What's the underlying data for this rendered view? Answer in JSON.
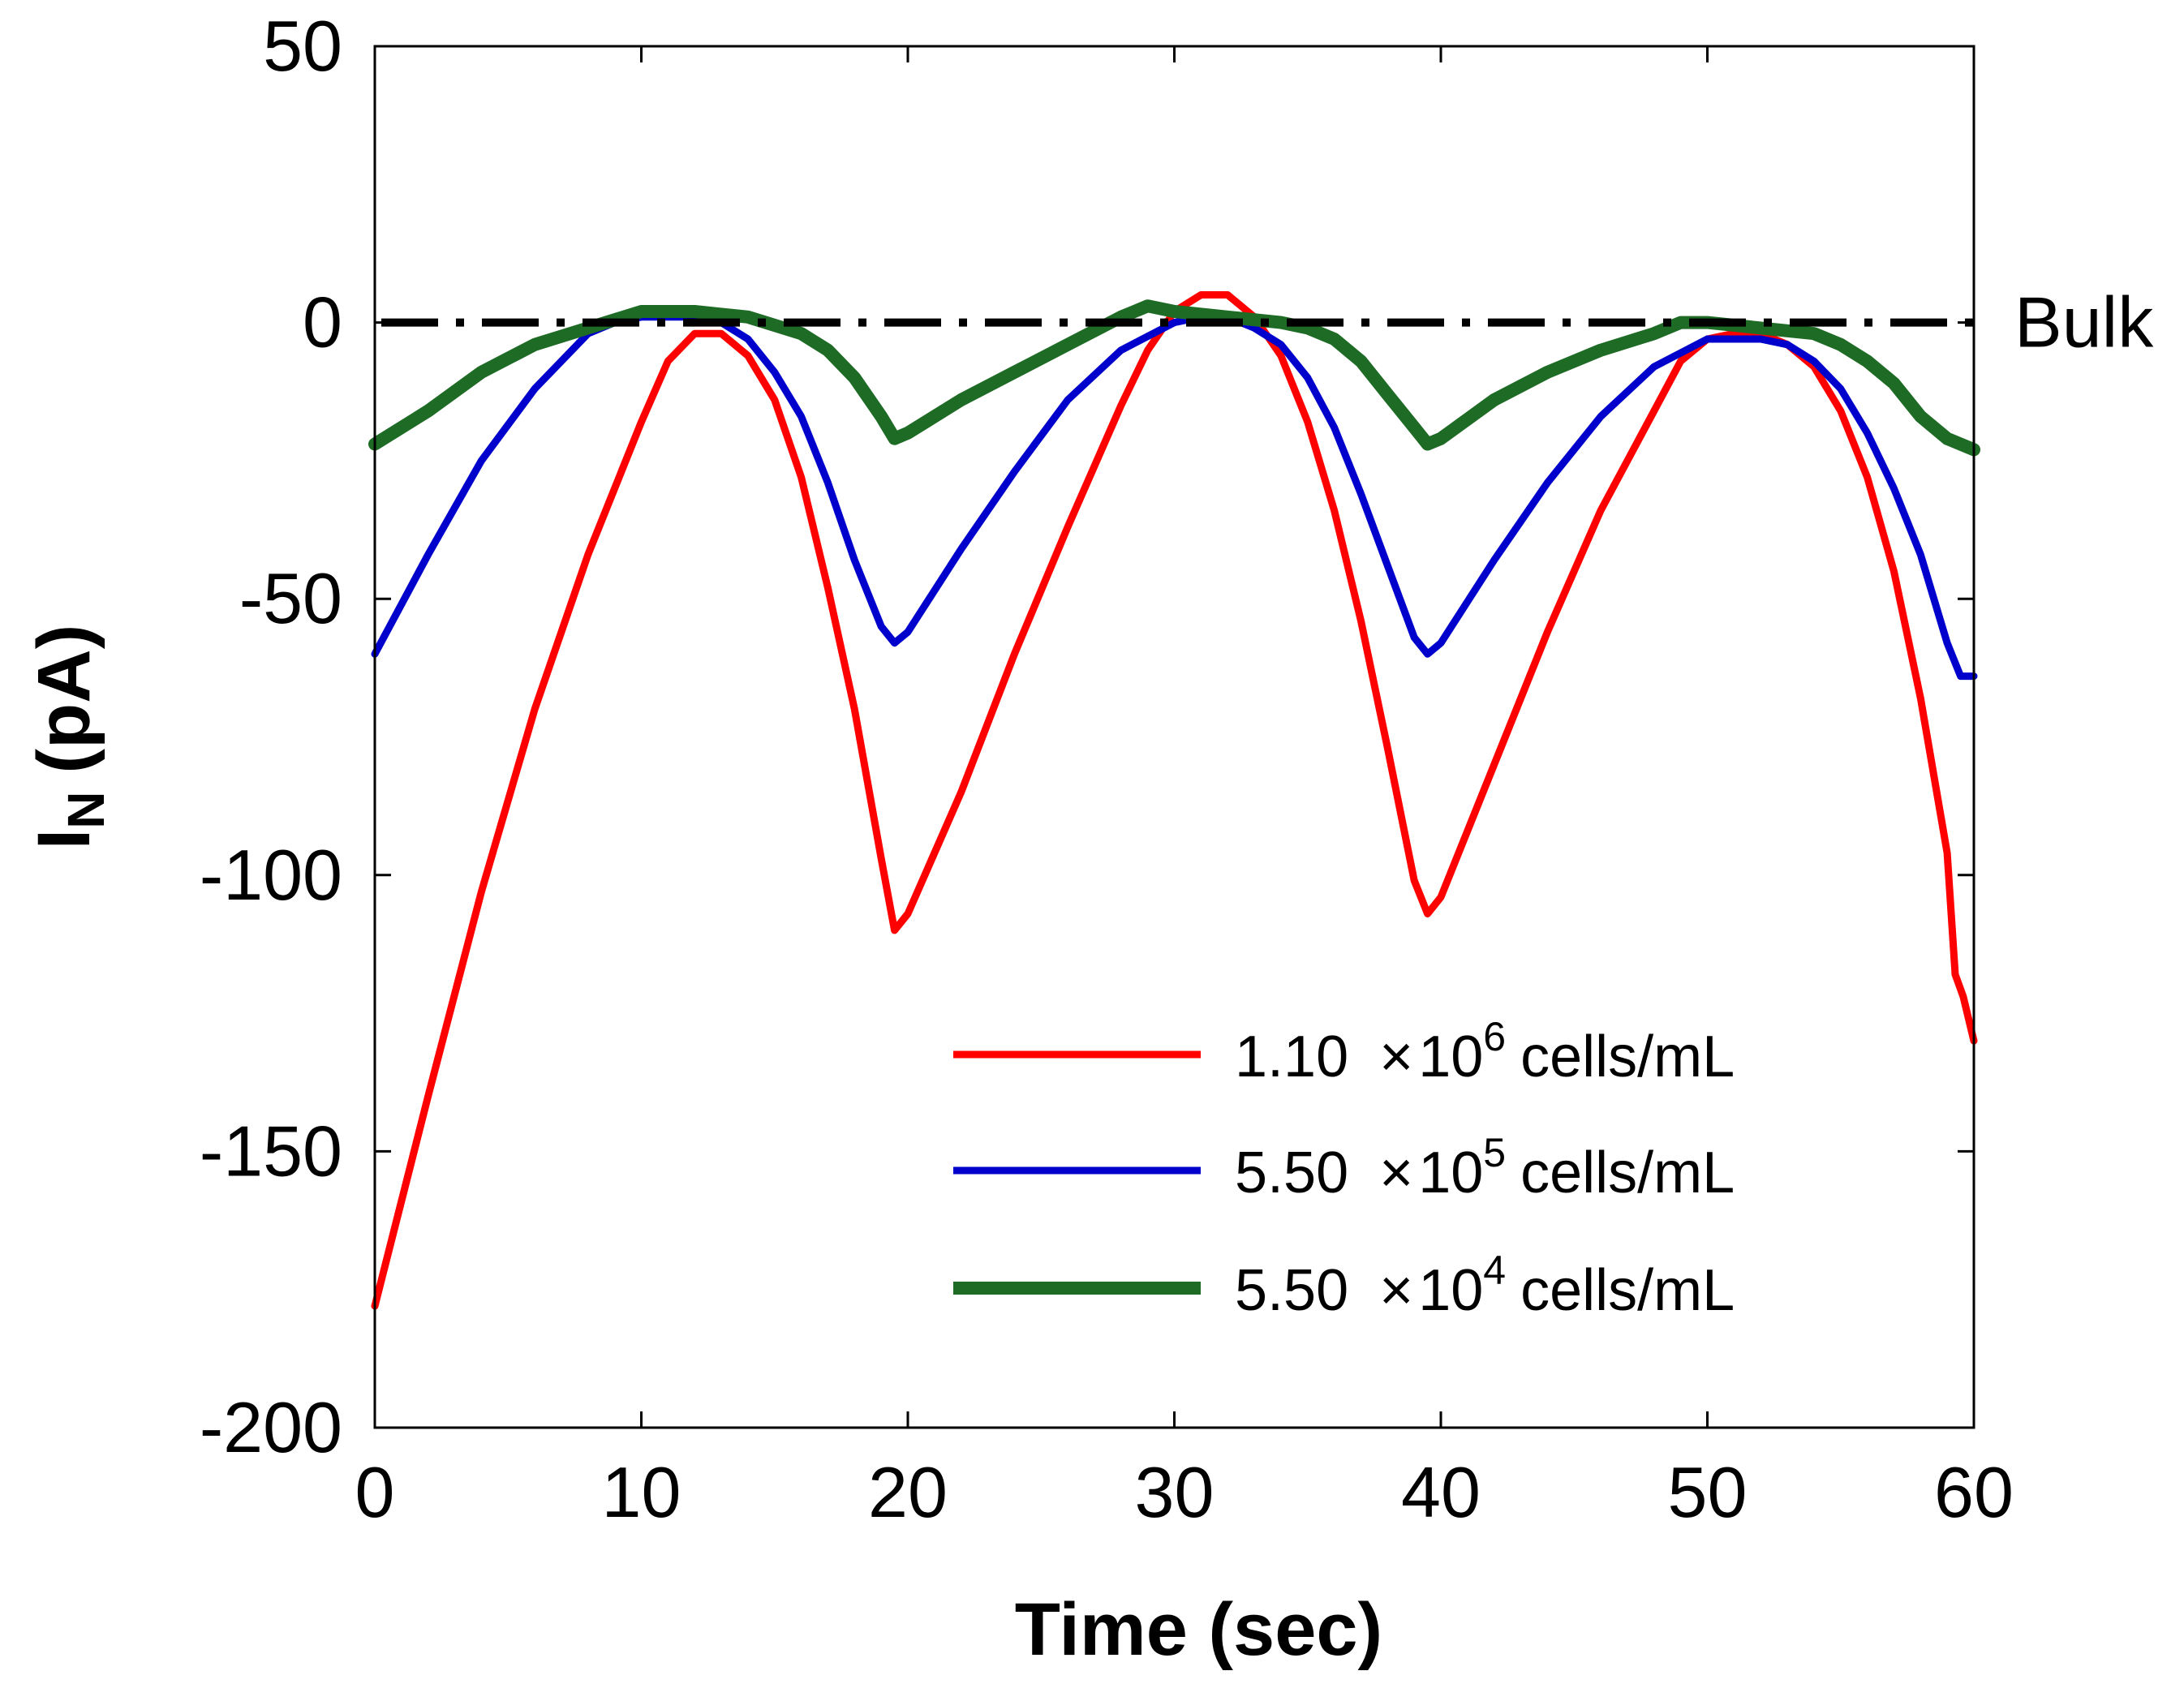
{
  "chart_data": {
    "type": "line",
    "title": "",
    "xlabel": "Time (sec)",
    "ylabel": {
      "main": "I",
      "sub": "N",
      "unit": "(pA)"
    },
    "xlim": [
      0,
      60
    ],
    "ylim": [
      -200,
      50
    ],
    "xticks": [
      "0",
      "10",
      "20",
      "30",
      "40",
      "50",
      "60"
    ],
    "yticks": [
      "50",
      "0",
      "-50",
      "-100",
      "-150",
      "-200"
    ],
    "grid": false,
    "legend_position": "bottom-right",
    "reference_line": {
      "y": 0,
      "label": "Bulk",
      "color": "#000000",
      "style": "dash-dot"
    },
    "series": [
      {
        "name": "1.10 ×10^6 cells/mL",
        "legend": {
          "mantissa": "1.10",
          "times": "×",
          "base": "10",
          "exp": "6",
          "unit": "cells/mL"
        },
        "color": "#ff0000",
        "points": [
          [
            0,
            -178
          ],
          [
            2,
            -140
          ],
          [
            4,
            -103
          ],
          [
            6,
            -70
          ],
          [
            8,
            -42
          ],
          [
            10,
            -18
          ],
          [
            11,
            -7
          ],
          [
            12,
            -2
          ],
          [
            13,
            -2
          ],
          [
            14,
            -6
          ],
          [
            15,
            -14
          ],
          [
            16,
            -28
          ],
          [
            17,
            -48
          ],
          [
            18,
            -70
          ],
          [
            19,
            -97
          ],
          [
            19.5,
            -110
          ],
          [
            20,
            -107
          ],
          [
            22,
            -85
          ],
          [
            24,
            -60
          ],
          [
            26,
            -37
          ],
          [
            28,
            -15
          ],
          [
            29,
            -5
          ],
          [
            30,
            2
          ],
          [
            31,
            5
          ],
          [
            32,
            5
          ],
          [
            33,
            1
          ],
          [
            34,
            -6
          ],
          [
            35,
            -18
          ],
          [
            36,
            -34
          ],
          [
            37,
            -54
          ],
          [
            38,
            -77
          ],
          [
            39,
            -101
          ],
          [
            39.5,
            -107
          ],
          [
            40,
            -104
          ],
          [
            42,
            -80
          ],
          [
            44,
            -56
          ],
          [
            46,
            -34
          ],
          [
            48,
            -16
          ],
          [
            49,
            -7
          ],
          [
            50,
            -3
          ],
          [
            51,
            -2
          ],
          [
            52,
            -2
          ],
          [
            53,
            -4
          ],
          [
            54,
            -8
          ],
          [
            55,
            -16
          ],
          [
            56,
            -28
          ],
          [
            57,
            -45
          ],
          [
            58,
            -68
          ],
          [
            59,
            -96
          ],
          [
            59.3,
            -118
          ],
          [
            59.6,
            -122
          ],
          [
            60,
            -130
          ]
        ]
      },
      {
        "name": "5.50 ×10^5 cells/mL",
        "legend": {
          "mantissa": "5.50",
          "times": "×",
          "base": "10",
          "exp": "5",
          "unit": "cells/mL"
        },
        "color": "#0000cc",
        "points": [
          [
            0,
            -60
          ],
          [
            2,
            -42
          ],
          [
            4,
            -25
          ],
          [
            6,
            -12
          ],
          [
            8,
            -2
          ],
          [
            9,
            0
          ],
          [
            10,
            1
          ],
          [
            12,
            1
          ],
          [
            13,
            0
          ],
          [
            14,
            -3
          ],
          [
            15,
            -9
          ],
          [
            16,
            -17
          ],
          [
            17,
            -29
          ],
          [
            18,
            -43
          ],
          [
            19,
            -55
          ],
          [
            19.5,
            -58
          ],
          [
            20,
            -56
          ],
          [
            22,
            -41
          ],
          [
            24,
            -27
          ],
          [
            26,
            -14
          ],
          [
            28,
            -5
          ],
          [
            30,
            0
          ],
          [
            31,
            1
          ],
          [
            32,
            1
          ],
          [
            33,
            -1
          ],
          [
            34,
            -4
          ],
          [
            35,
            -10
          ],
          [
            36,
            -19
          ],
          [
            37,
            -31
          ],
          [
            38,
            -44
          ],
          [
            39,
            -57
          ],
          [
            39.5,
            -60
          ],
          [
            40,
            -58
          ],
          [
            42,
            -43
          ],
          [
            44,
            -29
          ],
          [
            46,
            -17
          ],
          [
            48,
            -8
          ],
          [
            50,
            -3
          ],
          [
            51,
            -3
          ],
          [
            52,
            -3
          ],
          [
            53,
            -4
          ],
          [
            54,
            -7
          ],
          [
            55,
            -12
          ],
          [
            56,
            -20
          ],
          [
            57,
            -30
          ],
          [
            58,
            -42
          ],
          [
            59,
            -58
          ],
          [
            59.5,
            -64
          ],
          [
            60,
            -64
          ]
        ]
      },
      {
        "name": "5.50 ×10^4 cells/mL",
        "legend": {
          "mantissa": "5.50",
          "times": "×",
          "base": "10",
          "exp": "4",
          "unit": "cells/mL"
        },
        "color": "#1e6b25",
        "points": [
          [
            0,
            -22
          ],
          [
            2,
            -16
          ],
          [
            4,
            -9
          ],
          [
            6,
            -4
          ],
          [
            8,
            -1
          ],
          [
            10,
            2
          ],
          [
            12,
            2
          ],
          [
            14,
            1
          ],
          [
            16,
            -2
          ],
          [
            17,
            -5
          ],
          [
            18,
            -10
          ],
          [
            19,
            -17
          ],
          [
            19.5,
            -21
          ],
          [
            20,
            -20
          ],
          [
            22,
            -14
          ],
          [
            24,
            -9
          ],
          [
            26,
            -4
          ],
          [
            28,
            1
          ],
          [
            29,
            3
          ],
          [
            30,
            2
          ],
          [
            32,
            1
          ],
          [
            34,
            0
          ],
          [
            35,
            -1
          ],
          [
            36,
            -3
          ],
          [
            37,
            -7
          ],
          [
            38,
            -13
          ],
          [
            39,
            -19
          ],
          [
            39.5,
            -22
          ],
          [
            40,
            -21
          ],
          [
            42,
            -14
          ],
          [
            44,
            -9
          ],
          [
            46,
            -5
          ],
          [
            48,
            -2
          ],
          [
            49,
            0
          ],
          [
            50,
            0
          ],
          [
            52,
            -1
          ],
          [
            54,
            -2
          ],
          [
            55,
            -4
          ],
          [
            56,
            -7
          ],
          [
            57,
            -11
          ],
          [
            58,
            -17
          ],
          [
            59,
            -21
          ],
          [
            60,
            -23
          ]
        ]
      }
    ]
  }
}
